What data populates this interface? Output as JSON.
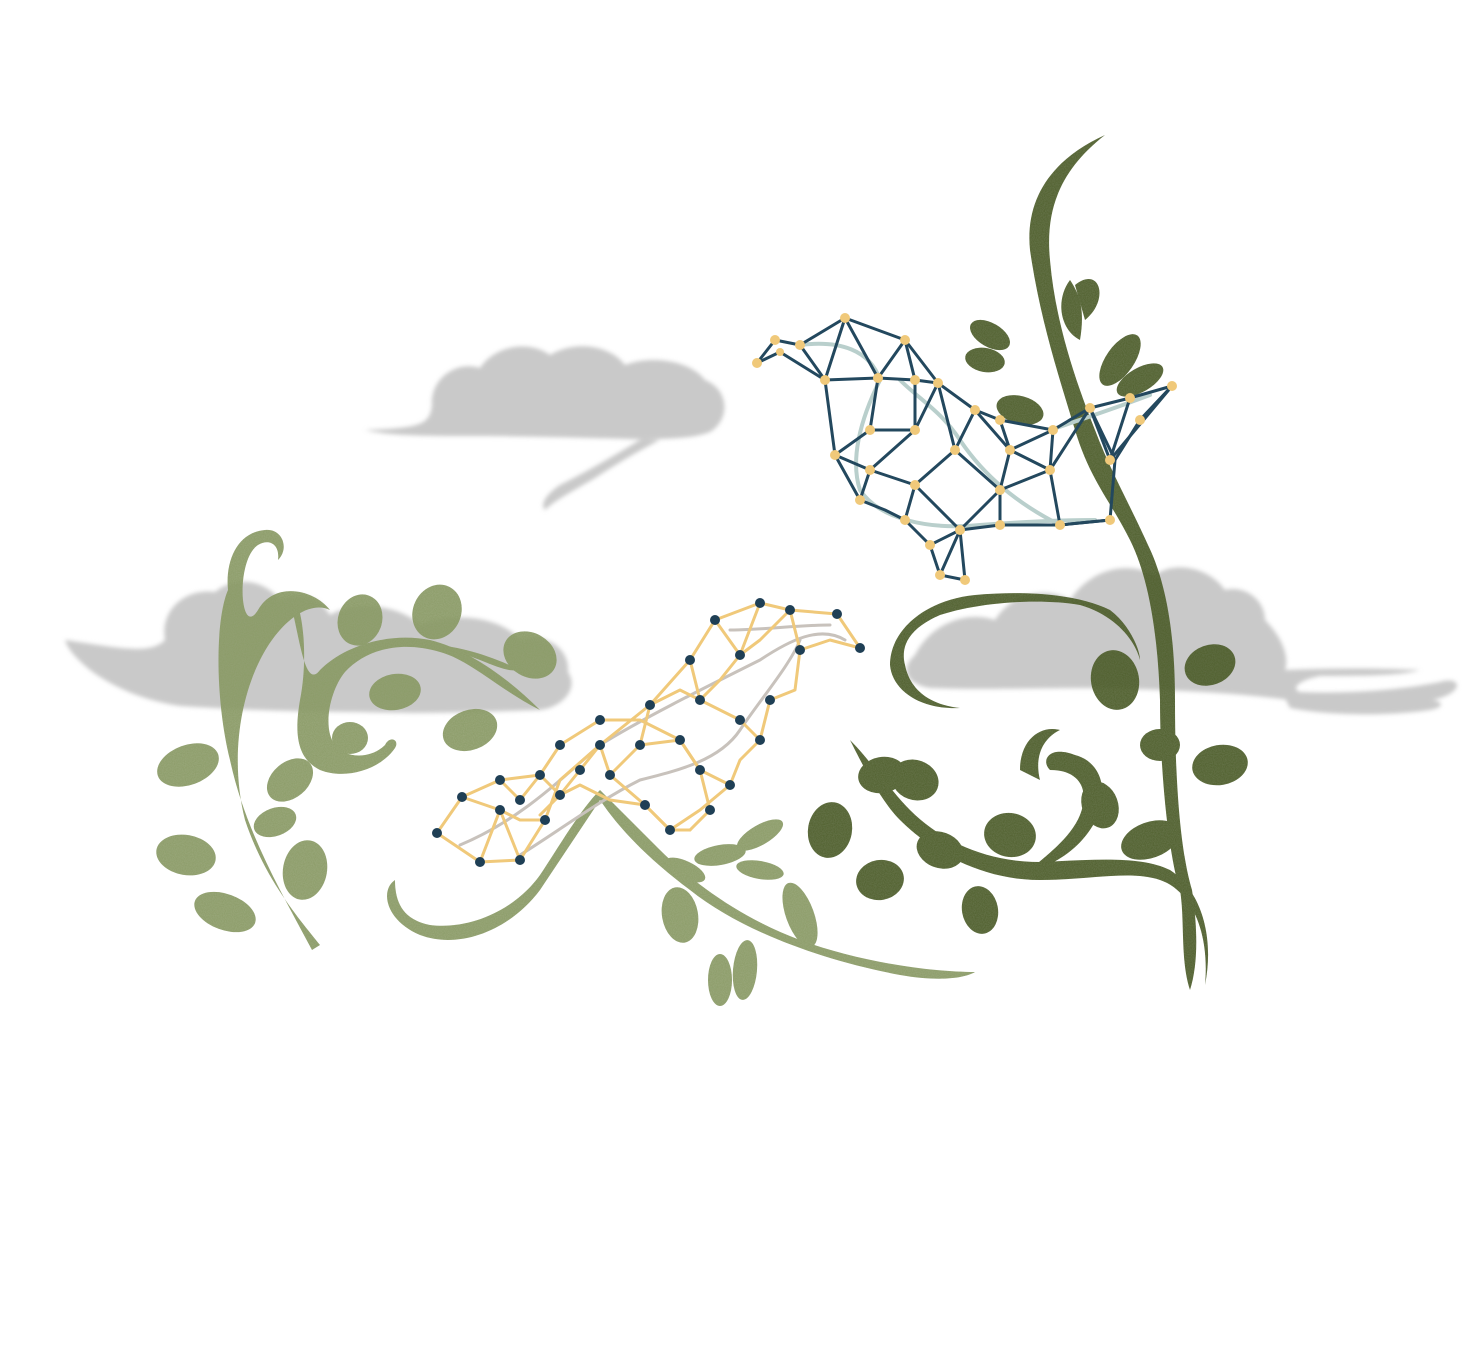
{
  "colors": {
    "background": "#ffffff",
    "cloud": "#c9c9c9",
    "leaf_light": "#8a9a66",
    "leaf_dark": "#4e5e2c",
    "bird_light_lines": "#f0c97a",
    "bird_light_inner": "#c8c2bc",
    "bird_light_nodes": "#1f3f55",
    "bird_dark_lines": "#23485e",
    "bird_dark_inner": "#b9cfcc",
    "bird_dark_nodes": "#f0c97a"
  },
  "icons": [
    "cloud-icon",
    "leafy-branch-icon",
    "constellation-bird-icon"
  ]
}
